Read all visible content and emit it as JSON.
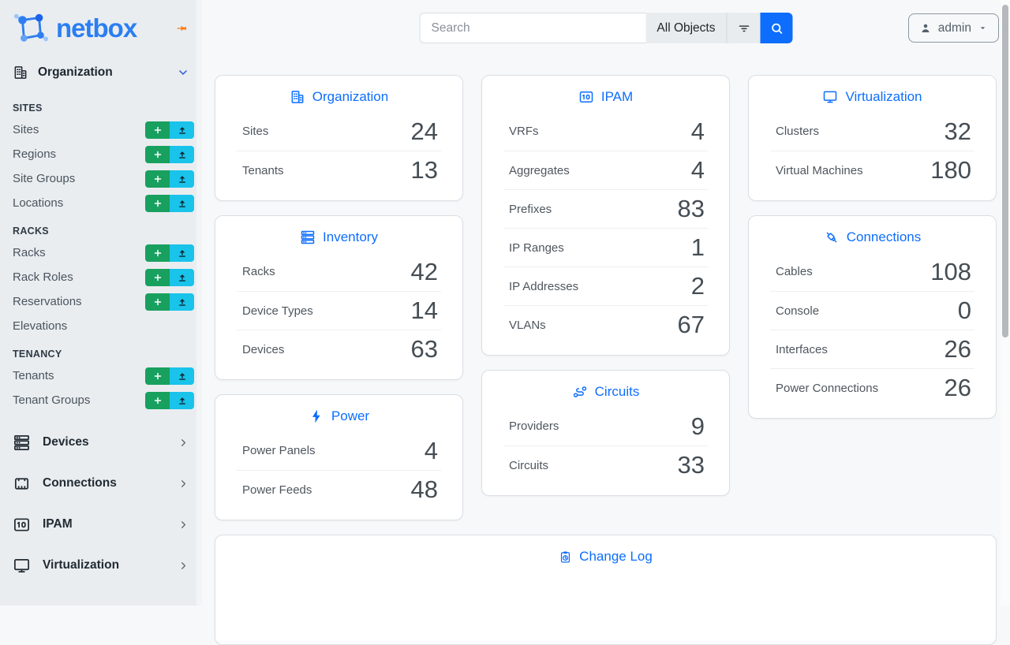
{
  "brand": {
    "name": "netbox"
  },
  "topbar": {
    "search_placeholder": "Search",
    "scope_label": "All Objects",
    "user_label": "admin"
  },
  "sidebar": {
    "primary": {
      "label": "Organization"
    },
    "groups": [
      {
        "heading": "SITES",
        "items": [
          {
            "label": "Sites",
            "buttons": true
          },
          {
            "label": "Regions",
            "buttons": true
          },
          {
            "label": "Site Groups",
            "buttons": true
          },
          {
            "label": "Locations",
            "buttons": true
          }
        ]
      },
      {
        "heading": "RACKS",
        "items": [
          {
            "label": "Racks",
            "buttons": true
          },
          {
            "label": "Rack Roles",
            "buttons": true
          },
          {
            "label": "Reservations",
            "buttons": true
          },
          {
            "label": "Elevations",
            "buttons": false
          }
        ]
      },
      {
        "heading": "TENANCY",
        "items": [
          {
            "label": "Tenants",
            "buttons": true
          },
          {
            "label": "Tenant Groups",
            "buttons": true
          }
        ]
      }
    ],
    "collapsed": [
      {
        "label": "Devices",
        "icon": "server-icon"
      },
      {
        "label": "Connections",
        "icon": "ethernet-icon"
      },
      {
        "label": "IPAM",
        "icon": "binary-icon"
      },
      {
        "label": "Virtualization",
        "icon": "monitor-icon"
      }
    ]
  },
  "cards": {
    "columns": [
      [
        {
          "title": "Organization",
          "icon": "building-icon",
          "rows": [
            {
              "label": "Sites",
              "value": "24"
            },
            {
              "label": "Tenants",
              "value": "13"
            }
          ]
        },
        {
          "title": "Inventory",
          "icon": "server-icon",
          "rows": [
            {
              "label": "Racks",
              "value": "42"
            },
            {
              "label": "Device Types",
              "value": "14"
            },
            {
              "label": "Devices",
              "value": "63"
            }
          ]
        },
        {
          "title": "Power",
          "icon": "bolt-icon",
          "rows": [
            {
              "label": "Power Panels",
              "value": "4"
            },
            {
              "label": "Power Feeds",
              "value": "48"
            }
          ]
        }
      ],
      [
        {
          "title": "IPAM",
          "icon": "binary-icon",
          "rows": [
            {
              "label": "VRFs",
              "value": "4"
            },
            {
              "label": "Aggregates",
              "value": "4"
            },
            {
              "label": "Prefixes",
              "value": "83"
            },
            {
              "label": "IP Ranges",
              "value": "1"
            },
            {
              "label": "IP Addresses",
              "value": "2"
            },
            {
              "label": "VLANs",
              "value": "67"
            }
          ]
        },
        {
          "title": "Circuits",
          "icon": "circuit-icon",
          "rows": [
            {
              "label": "Providers",
              "value": "9"
            },
            {
              "label": "Circuits",
              "value": "33"
            }
          ]
        }
      ],
      [
        {
          "title": "Virtualization",
          "icon": "monitor-icon",
          "rows": [
            {
              "label": "Clusters",
              "value": "32"
            },
            {
              "label": "Virtual Machines",
              "value": "180"
            }
          ]
        },
        {
          "title": "Connections",
          "icon": "cable-icon",
          "rows": [
            {
              "label": "Cables",
              "value": "108"
            },
            {
              "label": "Console",
              "value": "0"
            },
            {
              "label": "Interfaces",
              "value": "26"
            },
            {
              "label": "Power Connections",
              "value": "26"
            }
          ]
        }
      ]
    ],
    "footer": {
      "title": "Change Log",
      "icon": "clipboard-clock-icon"
    }
  },
  "colors": {
    "primary": "#0d6efd",
    "add_green": "#18a05f",
    "import_cyan": "#19c3ea",
    "pin_orange": "#fd7e14"
  }
}
